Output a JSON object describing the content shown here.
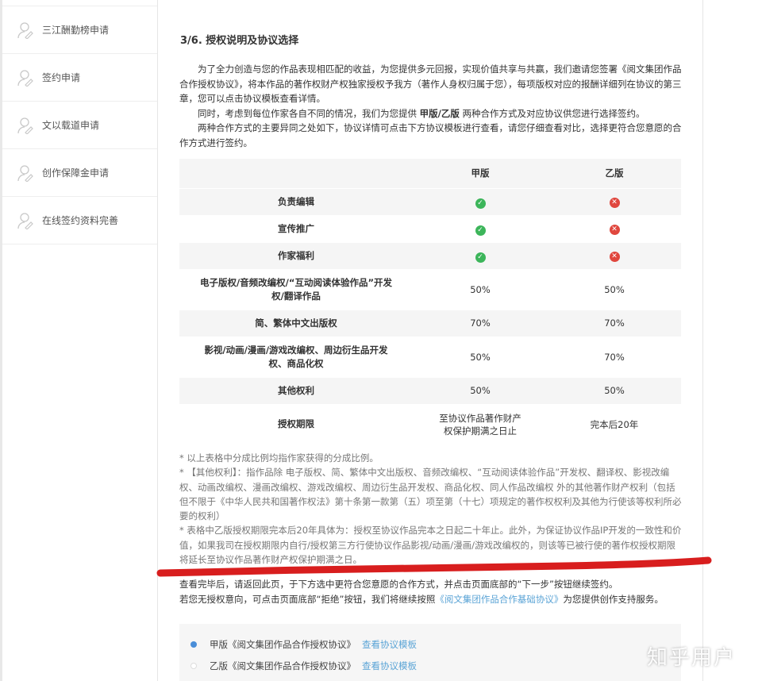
{
  "sidebar": {
    "items": [
      {
        "label": "三江酬勤榜申请"
      },
      {
        "label": "签约申请"
      },
      {
        "label": "文以载道申请"
      },
      {
        "label": "创作保障金申请"
      },
      {
        "label": "在线签约资料完善"
      }
    ]
  },
  "main": {
    "title": "3/6. 授权说明及协议选择",
    "intro": {
      "p1": "为了全力创造与您的作品表现相匹配的收益，为您提供多元回报，实现价值共享与共赢，我们邀请您签署《阅文集团作品合作授权协议》，将本作品的著作权财产权独家授权予我方（著作人身权归属于您），每项版权对应的报酬详细列在协议的第三章，您可以点击协议模板查看详情。",
      "p2_pre": "同时，考虑到每位作家各自不同的情况，我们为您提供 ",
      "p2_bold": "甲版/乙版",
      "p2_post": " 两种合作方式及对应协议供您进行选择签约。",
      "p3": "两种合作方式的主要异同之处如下，协议详情可点击下方协议模板进行查看，请您仔细查看对比，选择更符合您意愿的合作方式进行签约。"
    },
    "table": {
      "headers": [
        "",
        "甲版",
        "乙版"
      ],
      "rows": [
        {
          "label": "负责编辑",
          "a": "check",
          "b": "cross"
        },
        {
          "label": "宣传推广",
          "a": "check",
          "b": "cross"
        },
        {
          "label": "作家福利",
          "a": "check",
          "b": "cross"
        },
        {
          "label": "电子版权/音频改编权/“互动阅读体验作品”开发权/翻译作品",
          "a": "50%",
          "b": "50%"
        },
        {
          "label": "简、繁体中文出版权",
          "a": "70%",
          "b": "70%"
        },
        {
          "label": "影视/动画/漫画/游戏改编权、周边衍生品开发权、商品化权",
          "a": "50%",
          "b": "70%"
        },
        {
          "label": "其他权利",
          "a": "50%",
          "b": "50%"
        },
        {
          "label": "授权期限",
          "a": "至协议作品著作财产权保护期满之日止",
          "b": "完本后20年"
        }
      ]
    },
    "notes": [
      "* 以上表格中分成比例均指作家获得的分成比例。",
      "* 【其他权利】：指作品除 电子版权、简、繁体中文出版权、音频改编权、“互动阅读体验作品”开发权、翻译权、影视改编权、动画改编权、漫画改编权、游戏改编权、周边衍生品开发权、商品化权、同人作品改编权 外的其他著作财产权利（包括但不限于《中华人民共和国著作权法》第十条第一款第（五）项至第（十七）项规定的著作权权利及其他为行使该等权利所必要的权利）",
      "* 表格中乙版授权期限完本后20年具体为：授权至协议作品完本之日起二十年止。此外，为保证协议作品IP开发的一致性和价值，如果我司在授权期限内自行/授权第三方行使协议作品影视/动画/漫画/游戏改编权的，则该等已被行使的著作权授权期限将延长至协议作品著作财产权保护期满之日。"
    ],
    "after": {
      "line1": "查看完毕后，请返回此页，于下方选中更符合您意愿的合作方式，并点击页面底部的“下一步”按钮继续签约。",
      "line2_pre": "若您无授权意向，可点击页面底部“拒绝”按钮，我们将继续按照",
      "line2_link": "《阅文集团作品合作基础协议》",
      "line2_post": "为您提供创作支持服务。"
    },
    "options": [
      {
        "label": "甲版《阅文集团作品合作授权协议》",
        "link": "查看协议模板",
        "selected": true
      },
      {
        "label": "乙版《阅文集团作品合作授权协议》",
        "link": "查看协议模板",
        "selected": false
      }
    ]
  },
  "watermark": "知乎用户",
  "colors": {
    "check": "#3cb55a",
    "cross": "#e0473e",
    "link": "#5ba4d6",
    "annotation": "#d81e1e"
  }
}
